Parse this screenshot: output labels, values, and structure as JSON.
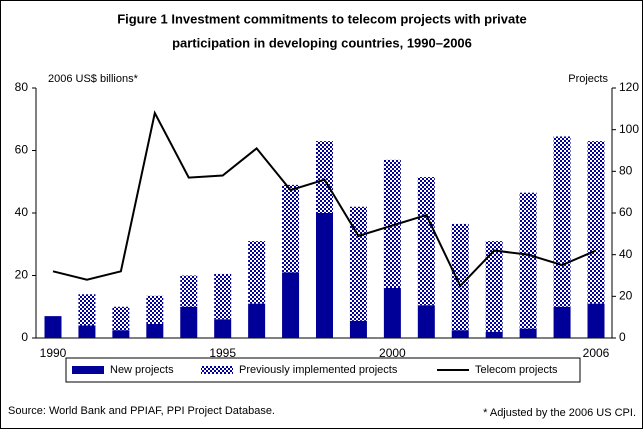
{
  "chart_data": {
    "type": "bar",
    "title": "Figure 1 Investment commitments to telecom projects with private",
    "subtitle": "participation in developing countries, 1990–2006",
    "y_label": "2006 US$ billions*",
    "y2_label": "Projects",
    "categories": [
      "1990",
      null,
      null,
      null,
      null,
      "1995",
      null,
      null,
      null,
      null,
      "2000",
      null,
      null,
      null,
      null,
      null,
      "2006"
    ],
    "stacked": true,
    "series": [
      {
        "name": "New projects",
        "color": "#000099",
        "pattern": "solid",
        "values": [
          7,
          4,
          2.5,
          4.5,
          10,
          6,
          11,
          21,
          40,
          5.5,
          16,
          10.5,
          2.5,
          2,
          3,
          10,
          11
        ]
      },
      {
        "name": "Previously implemented projects",
        "color": "#000099",
        "pattern": "checker",
        "values": [
          0,
          10,
          7.5,
          9,
          10,
          14.5,
          20,
          28,
          23,
          36.5,
          41,
          41,
          34,
          29,
          43.5,
          54.5,
          52
        ]
      },
      {
        "name": "Telecom projects",
        "color": "#000000",
        "type": "line",
        "axis": "y2",
        "values": [
          32,
          28,
          32,
          108,
          77,
          78,
          91,
          71,
          76,
          49,
          54,
          59,
          25,
          42,
          40,
          35,
          42
        ]
      }
    ],
    "ylim": [
      0,
      80
    ],
    "yticks": [
      0,
      20,
      40,
      60,
      80
    ],
    "y2lim": [
      0,
      120
    ],
    "y2ticks": [
      0,
      20,
      40,
      60,
      80,
      100,
      120
    ],
    "grid": false,
    "legend": "bottom",
    "source": "Source: World Bank and PPIAF, PPI Project Database.",
    "footnote": "* Adjusted by the 2006 US CPI."
  }
}
